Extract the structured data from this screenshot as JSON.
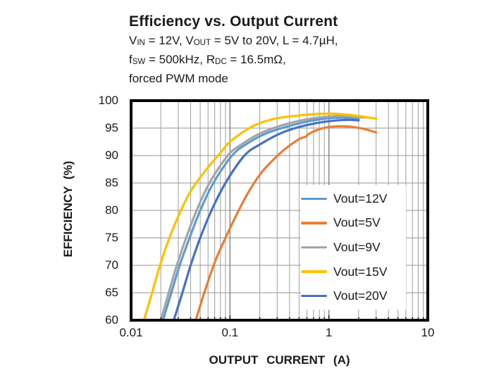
{
  "title": "Efficiency vs. Output Current",
  "subtitle_lines": [
    [
      {
        "t": "V"
      },
      {
        "t": "IN",
        "sub": true
      },
      {
        "t": " = 12V, V"
      },
      {
        "t": "OUT",
        "sub": true
      },
      {
        "t": " = 5V to 20V, L = 4.7µH,"
      }
    ],
    [
      {
        "t": "f"
      },
      {
        "t": "SW",
        "sub": true
      },
      {
        "t": " = 500kHz, R"
      },
      {
        "t": "DC",
        "sub": true
      },
      {
        "t": " = 16.5mΩ,"
      }
    ],
    [
      {
        "t": "forced PWM mode"
      }
    ]
  ],
  "chart_data": {
    "type": "line",
    "x_scale": "log",
    "xlabel": "OUTPUT CURRENT (A)",
    "ylabel": "EFFICIENCY (%)",
    "xlim": [
      0.01,
      10
    ],
    "ylim": [
      60,
      100
    ],
    "x_ticks": [
      "0.01",
      "0.1",
      "1",
      "10"
    ],
    "y_ticks": [
      100,
      95,
      90,
      85,
      80,
      75,
      70,
      65,
      60
    ],
    "y_grid_step": 5,
    "grid": true,
    "grid_color": "#a6a6a6",
    "major_grid_color": "#8c8c8c",
    "frame_color": "#000000",
    "legend_position": "inside-lower-right",
    "series": [
      {
        "name": "Vout=12V",
        "color": "#5B9BD5",
        "points": [
          [
            0.021,
            60
          ],
          [
            0.0255,
            65
          ],
          [
            0.031,
            70
          ],
          [
            0.039,
            75
          ],
          [
            0.05,
            80
          ],
          [
            0.068,
            85
          ],
          [
            0.105,
            90
          ],
          [
            0.15,
            92.2
          ],
          [
            0.23,
            94
          ],
          [
            0.4,
            95.4
          ],
          [
            0.65,
            96.3
          ],
          [
            1,
            96.8
          ],
          [
            1.4,
            96.9
          ],
          [
            2,
            96.6
          ]
        ]
      },
      {
        "name": "Vout=5V",
        "color": "#ED7D31",
        "points": [
          [
            0.045,
            60
          ],
          [
            0.055,
            65
          ],
          [
            0.07,
            70.5
          ],
          [
            0.09,
            75
          ],
          [
            0.115,
            79
          ],
          [
            0.15,
            83
          ],
          [
            0.2,
            86.5
          ],
          [
            0.25,
            88.5
          ],
          [
            0.35,
            91
          ],
          [
            0.5,
            93
          ],
          [
            0.58,
            93.4
          ],
          [
            0.62,
            93.9
          ],
          [
            0.75,
            94.6
          ],
          [
            1,
            95.2
          ],
          [
            1.5,
            95.3
          ],
          [
            2.2,
            94.9
          ],
          [
            3,
            94.2
          ]
        ]
      },
      {
        "name": "Vout=9V",
        "color": "#A5A5A5",
        "points": [
          [
            0.02,
            60
          ],
          [
            0.024,
            65
          ],
          [
            0.029,
            70
          ],
          [
            0.036,
            75
          ],
          [
            0.046,
            80
          ],
          [
            0.062,
            85
          ],
          [
            0.095,
            90
          ],
          [
            0.13,
            92
          ],
          [
            0.2,
            94
          ],
          [
            0.35,
            95.6
          ],
          [
            0.6,
            96.6
          ],
          [
            1,
            97.1
          ],
          [
            1.5,
            97.2
          ],
          [
            2.3,
            96.9
          ]
        ]
      },
      {
        "name": "Vout=15V",
        "color": "#FFC000",
        "points": [
          [
            0.0135,
            60
          ],
          [
            0.016,
            64.5
          ],
          [
            0.02,
            70.5
          ],
          [
            0.025,
            75.5
          ],
          [
            0.031,
            79.5
          ],
          [
            0.04,
            83.5
          ],
          [
            0.055,
            87
          ],
          [
            0.08,
            90.5
          ],
          [
            0.1,
            92.5
          ],
          [
            0.15,
            94.8
          ],
          [
            0.2,
            95.9
          ],
          [
            0.3,
            96.8
          ],
          [
            0.5,
            97.3
          ],
          [
            0.8,
            97.6
          ],
          [
            1.2,
            97.6
          ],
          [
            2,
            97.2
          ],
          [
            3,
            96.7
          ]
        ]
      },
      {
        "name": "Vout=20V",
        "color": "#4472C4",
        "points": [
          [
            0.027,
            60
          ],
          [
            0.033,
            65
          ],
          [
            0.04,
            70
          ],
          [
            0.05,
            75
          ],
          [
            0.065,
            80
          ],
          [
            0.09,
            85
          ],
          [
            0.14,
            90
          ],
          [
            0.2,
            92
          ],
          [
            0.32,
            94
          ],
          [
            0.5,
            95.2
          ],
          [
            0.8,
            96
          ],
          [
            1.2,
            96.4
          ],
          [
            1.6,
            96.5
          ],
          [
            2,
            96.4
          ]
        ]
      }
    ]
  }
}
